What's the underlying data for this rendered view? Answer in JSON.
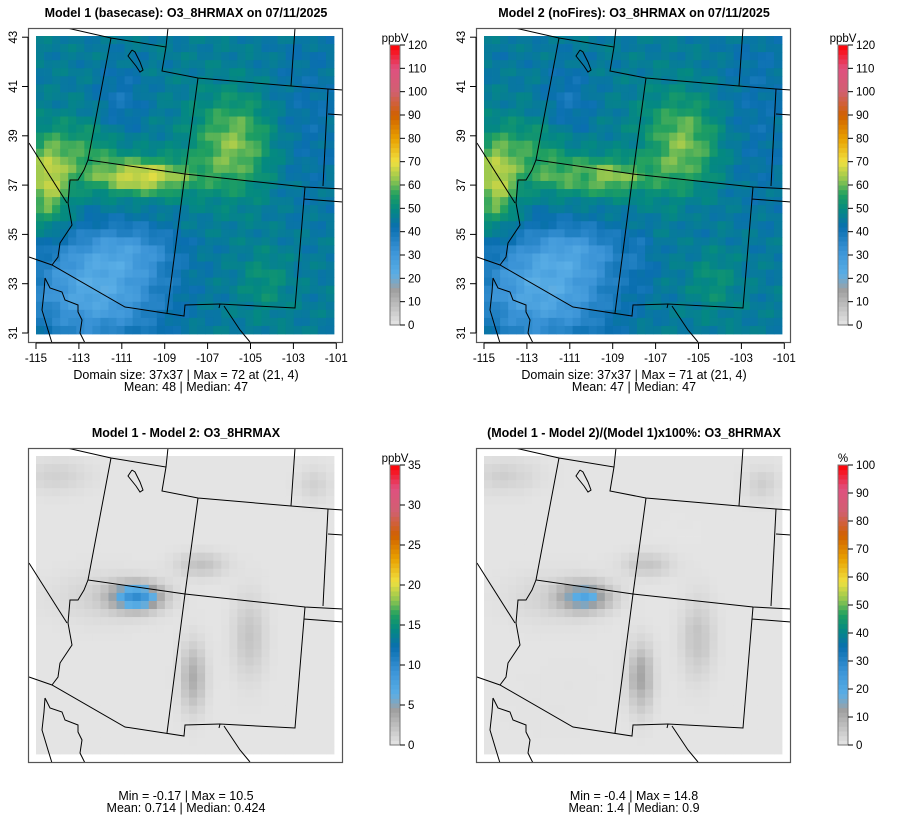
{
  "panels": [
    {
      "title": "Model 1 (basecase): O3_8HRMAX on 07/11/2025",
      "unit": "ppbV",
      "scale": "conc",
      "cbar_ticks": [
        "0",
        "10",
        "20",
        "30",
        "40",
        "50",
        "60",
        "70",
        "80",
        "90",
        "100",
        "110",
        "120"
      ],
      "cbar_max": 120,
      "caption1": "Domain size: 37x37 | Max = 72 at (21, 4)",
      "caption2": "Mean: 48 |  Median: 47",
      "axes": true
    },
    {
      "title": "Model 2 (noFires): O3_8HRMAX on 07/11/2025",
      "unit": "ppbV",
      "scale": "conc",
      "cbar_ticks": [
        "0",
        "10",
        "20",
        "30",
        "40",
        "50",
        "60",
        "70",
        "80",
        "90",
        "100",
        "110",
        "120"
      ],
      "cbar_max": 120,
      "caption1": "Domain size: 37x37 | Max = 71 at (21, 4)",
      "caption2": "Mean: 47 |  Median: 47",
      "axes": true
    },
    {
      "title": "Model 1 - Model 2: O3_8HRMAX",
      "unit": "ppbV",
      "scale": "diff",
      "cbar_ticks": [
        "0",
        "5",
        "10",
        "15",
        "20",
        "25",
        "30",
        "35"
      ],
      "cbar_max": 35,
      "caption1": "Min = -0.17 | Max = 10.5",
      "caption2": "Mean: 0.714 |  Median: 0.424",
      "axes": false
    },
    {
      "title": "(Model 1 - Model 2)/(Model 1)x100%: O3_8HRMAX",
      "unit": "%",
      "scale": "pct",
      "cbar_ticks": [
        "0",
        "10",
        "20",
        "30",
        "40",
        "50",
        "60",
        "70",
        "80",
        "90",
        "100"
      ],
      "cbar_max": 100,
      "caption1": "Min = -0.4 | Max = 14.8",
      "caption2": "Mean: 1.4 |  Median: 0.9",
      "axes": false
    }
  ],
  "axes": {
    "lon_ticks": [
      "-115",
      "-113",
      "-111",
      "-109",
      "-107",
      "-105",
      "-103",
      "-101"
    ],
    "lat_ticks": [
      "31",
      "33",
      "35",
      "37",
      "39",
      "41",
      "43"
    ]
  },
  "chart_data": {
    "type": "heatmap",
    "grid": "37x37",
    "variable": "O3_8HRMAX",
    "date": "07/11/2025",
    "lon_range": [
      -115,
      -101
    ],
    "lat_range": [
      31,
      43
    ]
  }
}
